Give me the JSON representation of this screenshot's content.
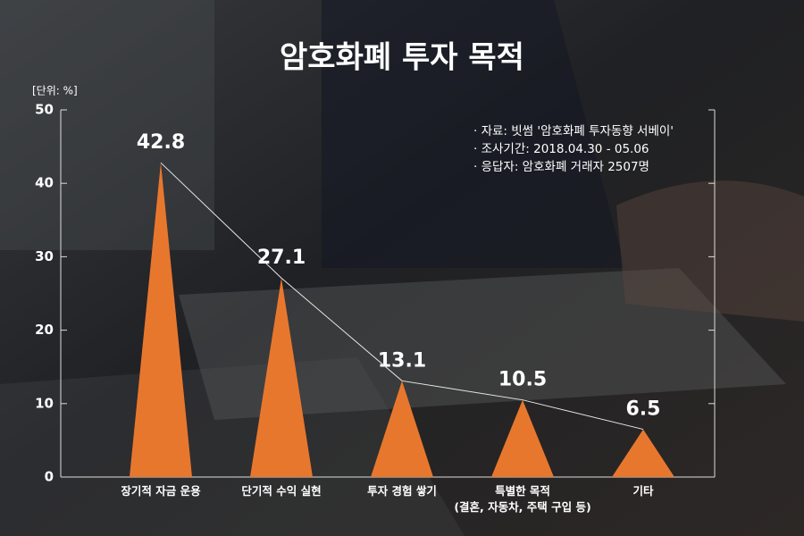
{
  "chart_data": {
    "type": "triangle-bar",
    "title": "암호화폐 투자 목적",
    "unit_label": "[단위: %]",
    "notes": [
      "· 자료: 빗썸 '암호화폐 투자동향 서베이'",
      "· 조사기간: 2018.04.30 - 05.06",
      "· 응답자: 암호화폐 거래자 2507명"
    ],
    "categories": [
      "장기적 자금 운용",
      "단기적 수익 실현",
      "투자 경험 쌓기",
      "특별한 목적\n(결혼, 자동차, 주택 구입 등)",
      "기타"
    ],
    "values": [
      42.8,
      27.1,
      13.1,
      10.5,
      6.5
    ],
    "color": "#e8772e",
    "line_color": "#e8e8e8",
    "ylim": [
      0,
      50
    ],
    "yticks": [
      0,
      10,
      20,
      30,
      40,
      50
    ]
  }
}
